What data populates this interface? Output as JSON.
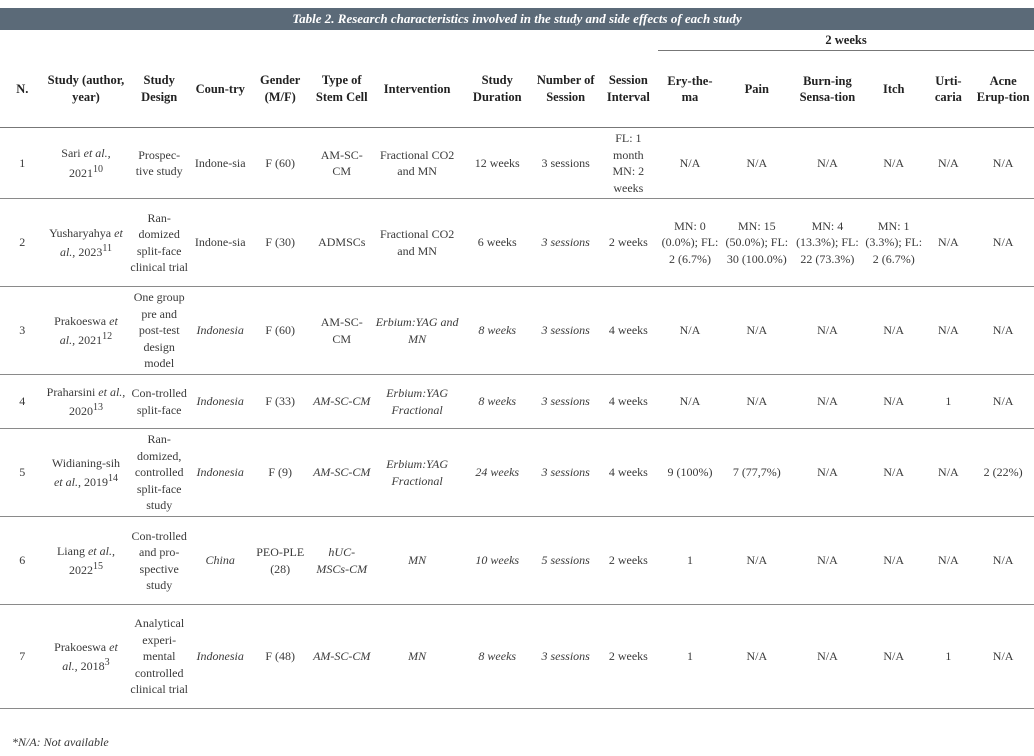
{
  "title": "Table 2. Research characteristics involved in the study and side effects of each study",
  "group_header": "2 weeks",
  "columns": [
    "N.",
    "Study (author, year)",
    "Study Design",
    "Coun-try",
    "Gender (M/F)",
    "Type of Stem Cell",
    "Intervention",
    "Study Duration",
    "Number of Session",
    "Session Interval",
    "Ery-the-ma",
    "Pain",
    "Burn-ing Sensa-tion",
    "Itch",
    "Urti-caria",
    "Acne Erup-tion"
  ],
  "rows": [
    {
      "n": "1",
      "author": "Sari",
      "etal": " et al.,",
      "year": "2021",
      "ref": "10",
      "design": "Prospec-tive study",
      "country": "Indone-sia",
      "gender": "F (60)",
      "stem": "AM-SC-CM",
      "intervention": "Fractional CO2 and MN",
      "duration": "12 weeks",
      "sessions": "3 sessions",
      "interval": "FL: 1 month MN: 2 weeks",
      "erythema": "N/A",
      "pain": "N/A",
      "burning": "N/A",
      "itch": "N/A",
      "urticaria": "N/A",
      "acne": "N/A"
    },
    {
      "n": "2",
      "author": "Yusharyahya",
      "etal": " et al.,",
      "year": "2023",
      "ref": "11",
      "design": "Ran-domized split-face clinical trial",
      "country": "Indone-sia",
      "gender": "F (30)",
      "stem": "ADMSCs",
      "intervention": "Fractional CO2 and MN",
      "duration": "6 weeks",
      "sessions": "3 sessions",
      "interval": "2 weeks",
      "erythema": "MN: 0 (0.0%); FL: 2 (6.7%)",
      "pain": "MN: 15 (50.0%); FL: 30 (100.0%)",
      "burning": "MN: 4 (13.3%); FL: 22 (73.3%)",
      "itch": "MN: 1 (3.3%); FL: 2 (6.7%)",
      "urticaria": "N/A",
      "acne": "N/A"
    },
    {
      "n": "3",
      "author": "Prakoeswa",
      "etal": " et al.,",
      "year": "2021",
      "ref": "12",
      "design": "One group pre and post-test design model",
      "country": "Indonesia",
      "gender": "F (60)",
      "stem": "AM-SC-CM",
      "intervention": "Erbium:YAG and MN",
      "duration": "8 weeks",
      "sessions": "3 sessions",
      "interval": "4 weeks",
      "erythema": "N/A",
      "pain": "N/A",
      "burning": "N/A",
      "itch": "N/A",
      "urticaria": "N/A",
      "acne": "N/A"
    },
    {
      "n": "4",
      "author": "Praharsini",
      "etal": " et al.,",
      "year": "2020",
      "ref": "13",
      "design": "Con-trolled split-face",
      "country": "Indonesia",
      "gender": "F (33)",
      "stem": "AM-SC-CM",
      "intervention": "Erbium:YAG Fractional",
      "duration": "8 weeks",
      "sessions": "3 sessions",
      "interval": "4 weeks",
      "erythema": "N/A",
      "pain": "N/A",
      "burning": "N/A",
      "itch": "N/A",
      "urticaria": "1",
      "acne": "N/A"
    },
    {
      "n": "5",
      "author": "Widianing-sih",
      "etal": " et al.,",
      "year": "2019",
      "ref": "14",
      "design": "Ran-domized, controlled split-face study",
      "country": "Indonesia",
      "gender": "F (9)",
      "stem": "AM-SC-CM",
      "intervention": "Erbium:YAG Fractional",
      "duration": "24 weeks",
      "sessions": "3 sessions",
      "interval": "4 weeks",
      "erythema": "9 (100%)",
      "pain": "7 (77,7%)",
      "burning": "N/A",
      "itch": "N/A",
      "urticaria": "N/A",
      "acne": "2 (22%)"
    },
    {
      "n": "6",
      "author": "Liang",
      "etal": " et al.,",
      "year": "2022",
      "ref": "15",
      "design": "Con-trolled and pro-spective study",
      "country": "China",
      "gender": "PEO-PLE (28)",
      "stem": "hUC-MSCs-CM",
      "intervention": "MN",
      "duration": "10 weeks",
      "sessions": "5 sessions",
      "interval": "2 weeks",
      "erythema": "1",
      "pain": "N/A",
      "burning": "N/A",
      "itch": "N/A",
      "urticaria": "N/A",
      "acne": "N/A"
    },
    {
      "n": "7",
      "author": "Prakoeswa",
      "etal": " et al.,",
      "year": "2018",
      "ref": "3",
      "design": "Analytical experi-mental controlled clinical trial",
      "country": "Indonesia",
      "gender": "F (48)",
      "stem": "AM-SC-CM",
      "intervention": "MN",
      "duration": "8 weeks",
      "sessions": "3 sessions",
      "interval": "2 weeks",
      "erythema": "1",
      "pain": "N/A",
      "burning": "N/A",
      "itch": "N/A",
      "urticaria": "1",
      "acne": "N/A"
    }
  ],
  "footnote": "*N/A: Not available"
}
